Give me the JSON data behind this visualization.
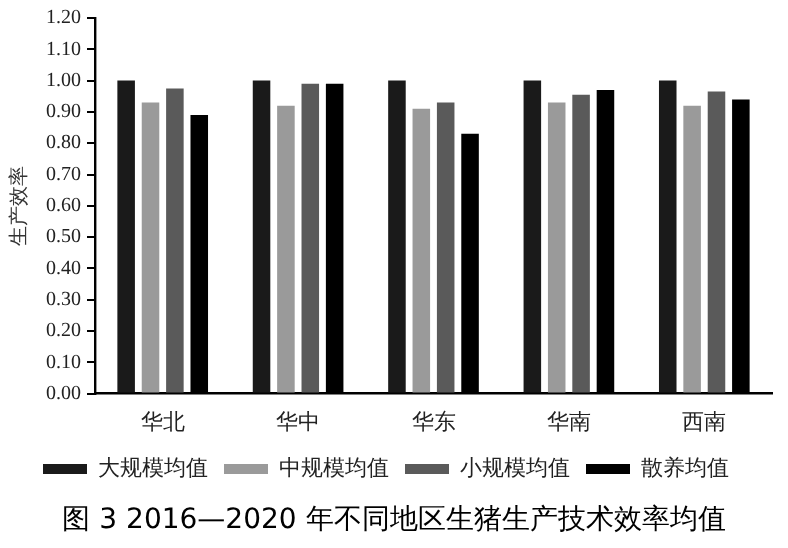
{
  "chart_data": {
    "type": "bar",
    "title": "图 3  2016—2020 年不同地区生猪生产技术效率均值",
    "ylabel": "生产效率",
    "categories": [
      "华北",
      "华中",
      "华东",
      "华南",
      "西南"
    ],
    "series": [
      {
        "name": "大规模均值",
        "color": "#1a1a1a",
        "values": [
          1.0,
          1.0,
          1.0,
          1.0,
          1.0
        ]
      },
      {
        "name": "中规模均值",
        "color": "#9a9a9a",
        "values": [
          0.93,
          0.92,
          0.91,
          0.93,
          0.92
        ]
      },
      {
        "name": "小规模均值",
        "color": "#5a5a5a",
        "values": [
          0.975,
          0.99,
          0.93,
          0.955,
          0.965
        ]
      },
      {
        "name": "散养均值",
        "color": "#000000",
        "values": [
          0.89,
          0.99,
          0.83,
          0.97,
          0.94
        ]
      }
    ],
    "ylim": [
      0,
      1.2
    ],
    "yticks": [
      {
        "value": 0,
        "label": "0.00"
      },
      {
        "value": 0.1,
        "label": "0.10"
      },
      {
        "value": 0.2,
        "label": "0.20"
      },
      {
        "value": 0.3,
        "label": "0.30"
      },
      {
        "value": 0.4,
        "label": "0.40"
      },
      {
        "value": 0.5,
        "label": "0.50"
      },
      {
        "value": 0.6,
        "label": "0.60"
      },
      {
        "value": 0.7,
        "label": "0.70"
      },
      {
        "value": 0.8,
        "label": "0.80"
      },
      {
        "value": 0.9,
        "label": "0.90"
      },
      {
        "value": 1.0,
        "label": "1.00"
      },
      {
        "value": 1.1,
        "label": "1.10"
      },
      {
        "value": 1.2,
        "label": "1.20"
      }
    ],
    "grid": false,
    "legend": "bottom"
  }
}
